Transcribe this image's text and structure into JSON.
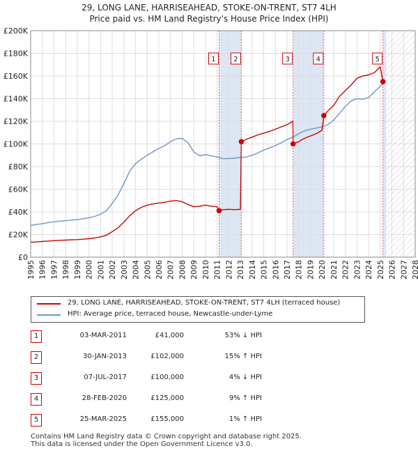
{
  "title_line1": "29, LONG LANE, HARRISEAHEAD, STOKE-ON-TRENT, ST7 4LH",
  "title_line2": "Price paid vs. HM Land Registry's House Price Index (HPI)",
  "chart_data": {
    "type": "line",
    "title": "29, LONG LANE, HARRISEAHEAD, STOKE-ON-TRENT, ST7 4LH — Price paid vs. HM Land Registry's House Price Index (HPI)",
    "xlim": [
      1995,
      2028
    ],
    "ylim": [
      0,
      200000
    ],
    "y_ticks": [
      0,
      20000,
      40000,
      60000,
      80000,
      100000,
      120000,
      140000,
      160000,
      180000,
      200000
    ],
    "y_tick_labels": [
      "£0",
      "£20K",
      "£40K",
      "£60K",
      "£80K",
      "£100K",
      "£120K",
      "£140K",
      "£160K",
      "£180K",
      "£200K"
    ],
    "x_ticks": [
      1995,
      1996,
      1997,
      1998,
      1999,
      2000,
      2001,
      2002,
      2003,
      2004,
      2005,
      2006,
      2007,
      2008,
      2009,
      2010,
      2011,
      2012,
      2013,
      2014,
      2015,
      2016,
      2017,
      2018,
      2019,
      2020,
      2021,
      2022,
      2023,
      2024,
      2025,
      2026,
      2027,
      2028
    ],
    "grid": true,
    "colors": {
      "property": "#cc0000",
      "hpi": "#6d93c9",
      "shade": "#dde6f5",
      "marker_line": "#e06070",
      "hatch": "#c8c8c8"
    },
    "series": [
      {
        "name": "29, LONG LANE, HARRISEAHEAD, STOKE-ON-TRENT, ST7 4LH (terraced house)",
        "x": [
          1995.0,
          1995.5,
          1996.0,
          1996.5,
          1997.0,
          1997.5,
          1998.0,
          1998.5,
          1999.0,
          1999.5,
          2000.0,
          2000.5,
          2001.0,
          2001.5,
          2002.0,
          2002.5,
          2003.0,
          2003.5,
          2004.0,
          2004.5,
          2005.0,
          2005.5,
          2006.0,
          2006.5,
          2007.0,
          2007.5,
          2008.0,
          2008.5,
          2009.0,
          2009.5,
          2010.0,
          2010.5,
          2011.0,
          2011.17,
          2011.5,
          2012.0,
          2012.5,
          2013.0,
          2013.08,
          2013.5,
          2014.0,
          2014.5,
          2015.0,
          2015.5,
          2016.0,
          2016.5,
          2017.0,
          2017.5,
          2017.52,
          2018.0,
          2018.5,
          2019.0,
          2019.5,
          2020.0,
          2020.16,
          2020.5,
          2021.0,
          2021.5,
          2022.0,
          2022.5,
          2023.0,
          2023.5,
          2024.0,
          2024.5,
          2025.0,
          2025.23
        ],
        "values": [
          13200,
          13400,
          13900,
          14200,
          14600,
          14900,
          15100,
          15300,
          15500,
          15900,
          16300,
          17000,
          18000,
          19300,
          22500,
          26000,
          31000,
          36500,
          41000,
          44000,
          46000,
          47000,
          47800,
          48500,
          49500,
          50000,
          49000,
          46500,
          44500,
          45000,
          46000,
          45000,
          44500,
          41000,
          42000,
          42300,
          42000,
          42300,
          102000,
          104000,
          106000,
          108000,
          109500,
          111000,
          113000,
          115000,
          117000,
          120000,
          100000,
          102000,
          105000,
          107000,
          109000,
          112000,
          125000,
          129000,
          134000,
          142000,
          147000,
          152000,
          158000,
          160000,
          161000,
          163000,
          168000,
          155000
        ]
      },
      {
        "name": "HPI: Average price, terraced house, Newcastle-under-Lyme",
        "x": [
          1995.0,
          1995.5,
          1996.0,
          1996.5,
          1997.0,
          1997.5,
          1998.0,
          1998.5,
          1999.0,
          1999.5,
          2000.0,
          2000.5,
          2001.0,
          2001.5,
          2002.0,
          2002.5,
          2003.0,
          2003.5,
          2004.0,
          2004.5,
          2005.0,
          2005.5,
          2006.0,
          2006.5,
          2007.0,
          2007.5,
          2008.0,
          2008.5,
          2009.0,
          2009.5,
          2010.0,
          2010.5,
          2011.0,
          2011.5,
          2012.0,
          2012.5,
          2013.0,
          2013.5,
          2014.0,
          2014.5,
          2015.0,
          2015.5,
          2016.0,
          2016.5,
          2017.0,
          2017.5,
          2018.0,
          2018.5,
          2019.0,
          2019.5,
          2020.0,
          2020.5,
          2021.0,
          2021.5,
          2022.0,
          2022.5,
          2023.0,
          2023.5,
          2024.0,
          2024.5,
          2025.0,
          2025.23
        ],
        "values": [
          28000,
          29000,
          29500,
          30500,
          31200,
          31800,
          32200,
          32700,
          33200,
          33900,
          34800,
          36000,
          38000,
          41000,
          47500,
          55000,
          65000,
          76000,
          82500,
          86500,
          90000,
          93000,
          96000,
          98500,
          102000,
          104500,
          105000,
          101000,
          93000,
          89500,
          90500,
          89500,
          88500,
          87000,
          87000,
          87500,
          88000,
          88500,
          90000,
          92000,
          94500,
          96500,
          98500,
          101000,
          104000,
          106000,
          109000,
          111500,
          113000,
          114000,
          115000,
          117000,
          121000,
          127000,
          133000,
          138000,
          140000,
          139500,
          141000,
          146000,
          151000,
          153000
        ]
      }
    ],
    "transactions": [
      {
        "id": "1",
        "x": 2011.17,
        "price": 41000,
        "date": "03-MAR-2011",
        "price_label": "£41,000",
        "hpi_label": "53% ↓ HPI"
      },
      {
        "id": "2",
        "x": 2013.08,
        "price": 102000,
        "date": "30-JAN-2013",
        "price_label": "£102,000",
        "hpi_label": "15% ↑ HPI"
      },
      {
        "id": "3",
        "x": 2017.52,
        "price": 100000,
        "date": "07-JUL-2017",
        "price_label": "£100,000",
        "hpi_label": "4% ↓ HPI"
      },
      {
        "id": "4",
        "x": 2020.16,
        "price": 125000,
        "date": "28-FEB-2020",
        "price_label": "£125,000",
        "hpi_label": "9% ↑ HPI"
      },
      {
        "id": "5",
        "x": 2025.23,
        "price": 155000,
        "date": "25-MAR-2025",
        "price_label": "£155,000",
        "hpi_label": "1% ↑ HPI"
      }
    ],
    "shaded_spans": [
      [
        2011.17,
        2013.08
      ],
      [
        2017.52,
        2020.16
      ],
      [
        2025.23,
        2025.5
      ]
    ],
    "hatch_from": 2025.5
  },
  "legend": {
    "property_label": "29, LONG LANE, HARRISEAHEAD, STOKE-ON-TRENT, ST7 4LH (terraced house)",
    "hpi_label": "HPI: Average price, terraced house, Newcastle-under-Lyme"
  },
  "footer": {
    "line1": "Contains HM Land Registry data © Crown copyright and database right 2025.",
    "line2": "This data is licensed under the Open Government Licence v3.0."
  }
}
